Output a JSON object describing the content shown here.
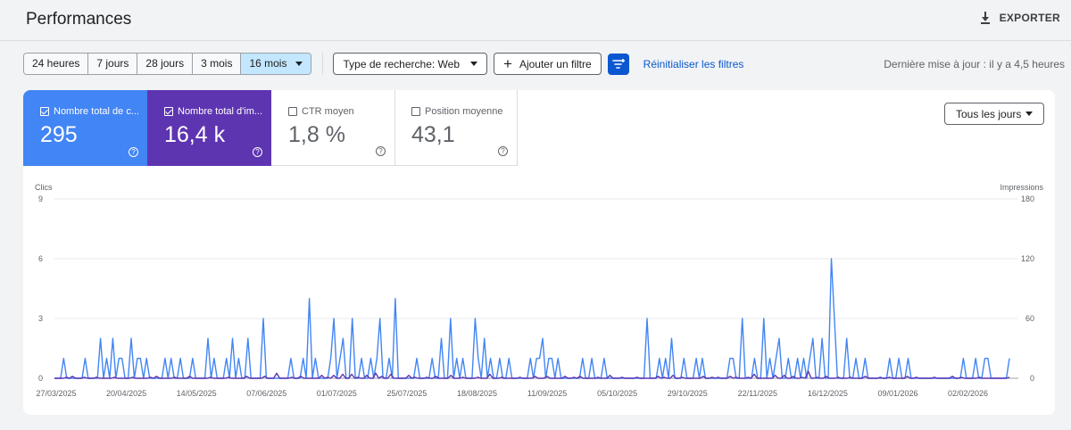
{
  "header": {
    "title": "Performances",
    "export_label": "EXPORTER"
  },
  "toolbar": {
    "ranges": [
      "24 heures",
      "7 jours",
      "28 jours",
      "3 mois",
      "16 mois"
    ],
    "active_range": "16 mois",
    "search_type": "Type de recherche: Web",
    "add_filter": "Ajouter un filtre",
    "reset_filters": "Réinitialiser les filtres",
    "last_update": "Dernière mise à jour : il y a 4,5 heures"
  },
  "metrics": [
    {
      "label": "Nombre total de c...",
      "value": "295",
      "checked": true,
      "color": "#4285f4"
    },
    {
      "label": "Nombre total d'im...",
      "value": "16,4 k",
      "checked": true,
      "color": "#5e35b1"
    },
    {
      "label": "CTR moyen",
      "value": "1,8 %",
      "checked": false
    },
    {
      "label": "Position moyenne",
      "value": "43,1",
      "checked": false
    }
  ],
  "days_select": "Tous les jours",
  "colors": {
    "clicks": "#4285f4",
    "impressions": "#5e35b1",
    "accent": "#0b57d0"
  },
  "chart_data": {
    "type": "line",
    "left_axis_label": "Clics",
    "right_axis_label": "Impressions",
    "left_ticks": [
      "0",
      "3",
      "6",
      "9"
    ],
    "right_ticks": [
      "0",
      "60",
      "120",
      "180"
    ],
    "ylim_left": [
      0,
      9
    ],
    "ylim_right": [
      0,
      180
    ],
    "x_ticks": [
      "27/03/2025",
      "20/04/2025",
      "14/05/2025",
      "07/06/2025",
      "01/07/2025",
      "25/07/2025",
      "18/08/2025",
      "11/09/2025",
      "05/10/2025",
      "29/10/2025",
      "22/11/2025",
      "16/12/2025",
      "09/01/2026",
      "02/02/2026"
    ],
    "grid": true,
    "series": [
      {
        "name": "Clics",
        "axis": "left",
        "values": [
          0,
          0,
          0,
          1,
          0,
          0,
          0,
          0,
          0,
          0,
          1,
          0,
          0,
          0,
          0,
          2,
          0,
          1,
          0,
          2,
          0,
          1,
          1,
          0,
          0,
          2,
          0,
          1,
          1,
          0,
          1,
          0,
          0,
          0,
          0,
          0,
          1,
          0,
          1,
          0,
          0,
          1,
          0,
          0,
          0,
          1,
          0,
          0,
          0,
          0,
          2,
          0,
          1,
          0,
          0,
          0,
          1,
          0,
          2,
          0,
          1,
          0,
          0,
          2,
          0,
          0,
          0,
          0,
          3,
          0,
          0,
          0,
          0,
          0,
          0,
          0,
          0,
          1,
          0,
          0,
          0,
          1,
          0,
          4,
          0,
          1,
          0,
          0,
          0,
          0,
          1,
          3,
          0,
          1,
          2,
          0,
          0,
          3,
          0,
          0,
          1,
          0,
          0,
          1,
          0,
          1,
          3,
          0,
          0,
          1,
          0,
          4,
          0,
          0,
          0,
          0,
          0,
          0,
          1,
          0,
          0,
          0,
          0,
          1,
          0,
          0,
          2,
          0,
          0,
          3,
          0,
          1,
          0,
          1,
          0,
          0,
          0,
          3,
          1,
          0,
          2,
          0,
          1,
          0,
          0,
          1,
          0,
          0,
          1,
          0,
          0,
          0,
          0,
          0,
          0,
          1,
          0,
          1,
          1,
          2,
          0,
          1,
          1,
          0,
          1,
          0,
          0,
          0,
          0,
          0,
          0,
          0,
          1,
          0,
          0,
          1,
          0,
          0,
          0,
          1,
          0,
          0,
          0,
          0,
          0,
          0,
          0,
          0,
          0,
          0,
          0,
          0,
          0,
          3,
          0,
          0,
          0,
          1,
          0,
          1,
          0,
          2,
          0,
          0,
          0,
          1,
          0,
          0,
          0,
          1,
          0,
          1,
          0,
          0,
          0,
          0,
          0,
          0,
          0,
          0,
          1,
          1,
          0,
          0,
          3,
          0,
          0,
          0,
          1,
          0,
          0,
          3,
          0,
          1,
          0,
          1,
          2,
          0,
          0,
          1,
          0,
          0,
          1,
          0,
          1,
          0,
          1,
          2,
          0,
          0,
          2,
          0,
          0,
          6,
          3,
          0,
          0,
          0,
          2,
          0,
          0,
          1,
          0,
          0,
          1,
          0,
          0,
          0,
          0,
          0,
          0,
          0,
          1,
          0,
          0,
          1,
          0,
          0,
          1,
          0,
          0,
          0,
          0,
          0,
          0,
          0,
          0,
          0,
          0,
          0,
          0,
          0,
          0,
          0,
          0,
          0,
          1,
          0,
          0,
          0,
          1,
          0,
          0,
          1,
          1,
          0,
          0,
          0,
          0,
          0,
          0,
          1
        ]
      },
      {
        "name": "Impressions",
        "axis": "right",
        "values": [
          0,
          0,
          0,
          0,
          1,
          0,
          2,
          0,
          0,
          0,
          1,
          0,
          0,
          0,
          1,
          0,
          0,
          0,
          0,
          0,
          1,
          0,
          0,
          0,
          0,
          0,
          1,
          0,
          0,
          0,
          0,
          0,
          1,
          0,
          2,
          0,
          0,
          0,
          0,
          0,
          1,
          0,
          0,
          0,
          0,
          2,
          0,
          0,
          0,
          0,
          0,
          0,
          1,
          0,
          0,
          0,
          0,
          0,
          1,
          0,
          0,
          0,
          0,
          0,
          2,
          0,
          0,
          0,
          0,
          0,
          2,
          0,
          0,
          0,
          5,
          0,
          0,
          0,
          0,
          1,
          0,
          0,
          2,
          0,
          0,
          0,
          0,
          0,
          0,
          3,
          0,
          1,
          0,
          3,
          0,
          0,
          4,
          0,
          0,
          4,
          0,
          1,
          0,
          0,
          3,
          0,
          0,
          5,
          0,
          2,
          0,
          0,
          4,
          0,
          0,
          0,
          0,
          0,
          3,
          0,
          1,
          0,
          0,
          0,
          1,
          0,
          0,
          2,
          0,
          0,
          0,
          0,
          3,
          0,
          0,
          0,
          1,
          0,
          0,
          0,
          0,
          1,
          0,
          0,
          0,
          4,
          0,
          0,
          0,
          1,
          0,
          0,
          0,
          0,
          0,
          1,
          0,
          0,
          0,
          0,
          2,
          0,
          0,
          0,
          2,
          0,
          0,
          0,
          0,
          0,
          2,
          0,
          0,
          1,
          0,
          2,
          0,
          0,
          0,
          0,
          0,
          1,
          0,
          0,
          0,
          3,
          0,
          0,
          0,
          1,
          0,
          0,
          0,
          0,
          1,
          0,
          0,
          0,
          0,
          0,
          0,
          2,
          0,
          1,
          0,
          0,
          3,
          0,
          0,
          1,
          0,
          0,
          0,
          0,
          0,
          0,
          2,
          0,
          0,
          1,
          0,
          1,
          0,
          0,
          0,
          2,
          0,
          1,
          0,
          0,
          0,
          1,
          0,
          4,
          0,
          0,
          0,
          0,
          0,
          0,
          3,
          0,
          0,
          3,
          0,
          0,
          2,
          0,
          0,
          1,
          0,
          7,
          0,
          0,
          1,
          0,
          0,
          2,
          0,
          0,
          0,
          1,
          0,
          0,
          0,
          1,
          0,
          0,
          0,
          0,
          2,
          0,
          0,
          0,
          0,
          1,
          0,
          0,
          1,
          0,
          0,
          0,
          0,
          0,
          2,
          0,
          0,
          1,
          0,
          0,
          0,
          0,
          0,
          1,
          0,
          0,
          0,
          0,
          0,
          2,
          0,
          0,
          1,
          0,
          0,
          0,
          0,
          0,
          1,
          0,
          0,
          0,
          0,
          0,
          0,
          0,
          0,
          0,
          1
        ]
      }
    ]
  }
}
